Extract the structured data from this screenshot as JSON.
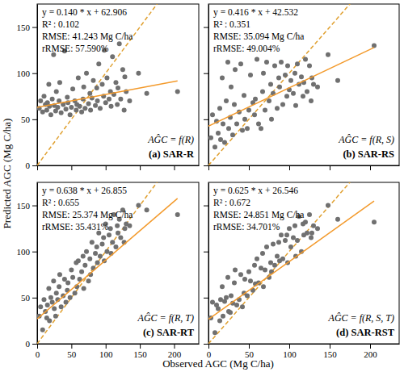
{
  "chart_data": {
    "type": "scatter",
    "x_label": "Observed AGC (Mg C/ha)",
    "y_label": "Predicted AGC (Mg C/ha)",
    "xlim": [
      0,
      236
    ],
    "ylim": [
      0,
      175
    ],
    "xticks": [
      0,
      50,
      100,
      150,
      200
    ],
    "yticks": [
      0,
      50,
      100,
      150
    ],
    "x": [
      3,
      5,
      8,
      10,
      12,
      14,
      15,
      17,
      18,
      20,
      22,
      24,
      25,
      27,
      28,
      30,
      32,
      33,
      35,
      38,
      40,
      42,
      44,
      45,
      48,
      50,
      52,
      55,
      57,
      58,
      60,
      62,
      65,
      67,
      68,
      70,
      72,
      75,
      77,
      78,
      80,
      82,
      85,
      87,
      88,
      90,
      92,
      95,
      97,
      98,
      100,
      102,
      105,
      107,
      108,
      110,
      112,
      115,
      117,
      118,
      120,
      122,
      125,
      127,
      128,
      130,
      135,
      148,
      160,
      205
    ],
    "panels": [
      {
        "title": "(a) SAR-R",
        "formula": "AĜC = f(R)",
        "annotations": [
          "y = 0.140 * x + 62.906",
          "R² : 0.102",
          "RMSE: 41.243 Mg C/ha",
          "rRMSE: 57.590%"
        ],
        "series": [
          {
            "type": "line",
            "color": "#e0a030",
            "line_style": "dashed",
            "x": [
              0,
              236
            ],
            "values": [
              0,
              236
            ]
          },
          {
            "type": "scatter",
            "color": "#707070",
            "marker": "circle",
            "values": [
              62,
              70,
              58,
              75,
              66,
              60,
              68,
              88,
              64,
              55,
              72,
              120,
              65,
              59,
              80,
              63,
              70,
              90,
              57,
              66,
              124,
              61,
              74,
              68,
              55,
              63,
              83,
              70,
              60,
              66,
              95,
              64,
              58,
              72,
              85,
              62,
              100,
              67,
              78,
              60,
              73,
              92,
              65,
              84,
              70,
              110,
              62,
              88,
              75,
              125,
              68,
              95,
              72,
              80,
              64,
              118,
              77,
              90,
              66,
              84,
              132,
              72,
              104,
              60,
              96,
              80,
              70,
              100,
              78,
              80
            ]
          },
          {
            "type": "line",
            "color": "#f39a2c",
            "line_style": "solid",
            "x": [
              0,
              205
            ],
            "values": [
              62.9,
              91.6
            ]
          }
        ]
      },
      {
        "title": "(b) SAR-RS",
        "formula": "AĜC = f(R, S)",
        "annotations": [
          "y = 0.416 * x + 42.532",
          "R² : 0.351",
          "RMSE: 35.094 Mg C/ha",
          "rRMSE: 49.004%"
        ],
        "series": [
          {
            "type": "line",
            "color": "#e0a030",
            "line_style": "dashed",
            "x": [
              0,
              236
            ],
            "values": [
              0,
              236
            ]
          },
          {
            "type": "scatter",
            "color": "#707070",
            "marker": "circle",
            "values": [
              30,
              55,
              20,
              48,
              35,
              62,
              28,
              95,
              45,
              25,
              70,
              112,
              40,
              52,
              85,
              33,
              66,
              104,
              45,
              58,
              110,
              38,
              76,
              50,
              40,
              60,
              98,
              68,
              55,
              72,
              115,
              45,
              40,
              80,
              100,
              60,
              112,
              70,
              88,
              50,
              78,
              108,
              62,
              95,
              85,
              112,
              66,
              98,
              75,
              108,
              82,
              92,
              78,
              100,
              65,
              110,
              88,
              96,
              75,
              90,
              115,
              80,
              108,
              70,
              95,
              88,
              85,
              120,
              92,
              130
            ]
          },
          {
            "type": "line",
            "color": "#f39a2c",
            "line_style": "solid",
            "x": [
              0,
              205
            ],
            "values": [
              42.5,
              127.8
            ]
          }
        ]
      },
      {
        "title": "(c) SAR-RT",
        "formula": "AĜC = f(R, T)",
        "annotations": [
          "y = 0.638 * x + 26.855",
          "R² : 0.655",
          "RMSE: 25.374 Mg C/ha",
          "rRMSE: 35.431%"
        ],
        "series": [
          {
            "type": "line",
            "color": "#e0a030",
            "line_style": "dashed",
            "x": [
              0,
              236
            ],
            "values": [
              0,
              236
            ]
          },
          {
            "type": "scatter",
            "color": "#707070",
            "marker": "circle",
            "values": [
              30,
              40,
              15,
              48,
              35,
              28,
              42,
              60,
              25,
              50,
              45,
              68,
              38,
              30,
              55,
              48,
              62,
              75,
              40,
              52,
              70,
              45,
              58,
              66,
              50,
              80,
              72,
              55,
              88,
              62,
              90,
              70,
              78,
              95,
              60,
              85,
              100,
              68,
              92,
              75,
              110,
              82,
              98,
              105,
              88,
              120,
              95,
              108,
              115,
              90,
              130,
              100,
              118,
              125,
              98,
              110,
              140,
              105,
              128,
              120,
              135,
              115,
              145,
              110,
              125,
              130,
              128,
              150,
              145,
              140
            ]
          },
          {
            "type": "line",
            "color": "#f39a2c",
            "line_style": "solid",
            "x": [
              0,
              205
            ],
            "values": [
              26.9,
              157.6
            ]
          }
        ]
      },
      {
        "title": "(d) SAR-RST",
        "formula": "AĜC = f(R, S, T)",
        "annotations": [
          "y = 0.625 * x + 26.546",
          "R² : 0.672",
          "RMSE: 24.851 Mg C/ha",
          "rRMSE: 34.701%"
        ],
        "series": [
          {
            "type": "line",
            "color": "#e0a030",
            "line_style": "dashed",
            "x": [
              0,
              236
            ],
            "values": [
              0,
              236
            ]
          },
          {
            "type": "scatter",
            "color": "#707070",
            "marker": "circle",
            "values": [
              28,
              45,
              12,
              42,
              38,
              25,
              48,
              62,
              30,
              46,
              50,
              72,
              35,
              34,
              52,
              44,
              66,
              80,
              42,
              48,
              75,
              40,
              55,
              70,
              52,
              78,
              68,
              58,
              85,
              65,
              92,
              66,
              82,
              98,
              62,
              80,
              105,
              72,
              88,
              78,
              108,
              85,
              95,
              110,
              90,
              118,
              92,
              112,
              118,
              88,
              125,
              105,
              115,
              128,
              95,
              112,
              138,
              100,
              130,
              118,
              132,
              120,
              140,
              115,
              120,
              128,
              125,
              150,
              135,
              132
            ]
          },
          {
            "type": "line",
            "color": "#f39a2c",
            "line_style": "solid",
            "x": [
              0,
              205
            ],
            "values": [
              26.5,
              154.7
            ]
          }
        ]
      }
    ]
  }
}
